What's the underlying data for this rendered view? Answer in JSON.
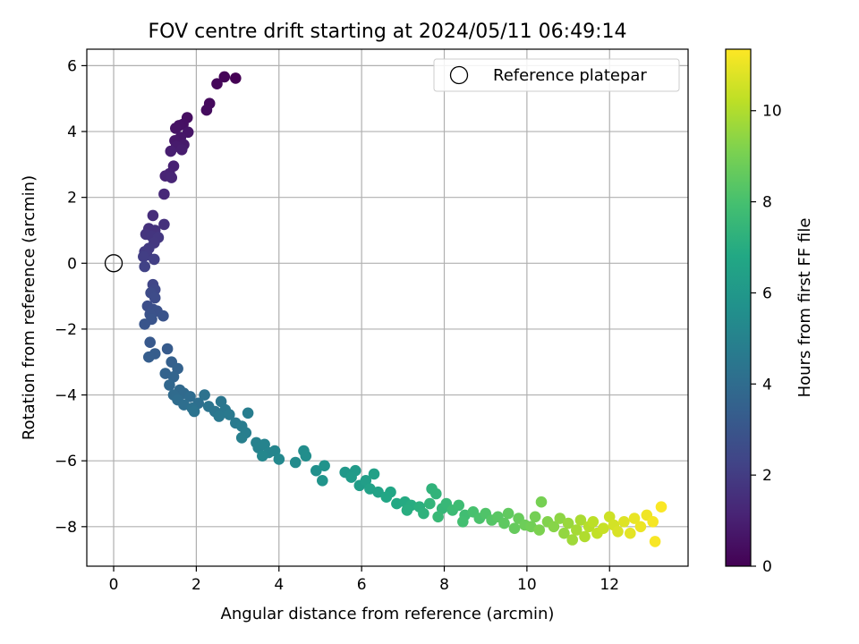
{
  "chart_data": {
    "type": "scatter",
    "title": "FOV centre drift starting at 2024/05/11 06:49:14",
    "xlabel": "Angular distance from reference (arcmin)",
    "ylabel": "Rotation from reference (arcmin)",
    "xlim": [
      -0.65,
      13.9
    ],
    "ylim": [
      -9.2,
      6.5
    ],
    "xticks": [
      0,
      2,
      4,
      6,
      8,
      10,
      12
    ],
    "yticks": [
      -8,
      -6,
      -4,
      -2,
      0,
      2,
      4,
      6
    ],
    "xtick_labels": [
      "0",
      "2",
      "4",
      "6",
      "8",
      "10",
      "12"
    ],
    "ytick_labels": [
      "−8",
      "−6",
      "−4",
      "−2",
      "0",
      "2",
      "4",
      "6"
    ],
    "grid": true,
    "colormap": "viridis",
    "colorbar": {
      "label": "Hours from first FF file",
      "range": [
        0,
        11.35
      ],
      "ticks": [
        0,
        2,
        4,
        6,
        8,
        10
      ],
      "tick_labels": [
        "0",
        "2",
        "4",
        "6",
        "8",
        "10"
      ]
    },
    "legend": {
      "position": "top-right",
      "entries": [
        {
          "label": "Reference platepar",
          "marker": "open-circle",
          "x": 0,
          "y": 0
        }
      ]
    },
    "series": [
      {
        "points": [
          {
            "x": 2.95,
            "y": 5.62,
            "c": 0.0
          },
          {
            "x": 2.68,
            "y": 5.66,
            "c": 0.1
          },
          {
            "x": 2.5,
            "y": 5.45,
            "c": 0.2
          },
          {
            "x": 2.32,
            "y": 4.85,
            "c": 0.3
          },
          {
            "x": 2.25,
            "y": 4.65,
            "c": 0.35
          },
          {
            "x": 1.78,
            "y": 4.42,
            "c": 0.45
          },
          {
            "x": 1.68,
            "y": 4.22,
            "c": 0.5
          },
          {
            "x": 1.58,
            "y": 4.18,
            "c": 0.55
          },
          {
            "x": 1.5,
            "y": 4.1,
            "c": 0.6
          },
          {
            "x": 1.8,
            "y": 3.98,
            "c": 0.65
          },
          {
            "x": 1.62,
            "y": 3.82,
            "c": 0.7
          },
          {
            "x": 1.48,
            "y": 3.72,
            "c": 0.75
          },
          {
            "x": 1.7,
            "y": 3.6,
            "c": 0.8
          },
          {
            "x": 1.52,
            "y": 3.55,
            "c": 0.85
          },
          {
            "x": 1.65,
            "y": 3.45,
            "c": 0.9
          },
          {
            "x": 1.38,
            "y": 3.4,
            "c": 0.95
          },
          {
            "x": 1.45,
            "y": 2.95,
            "c": 1.05
          },
          {
            "x": 1.35,
            "y": 2.72,
            "c": 1.1
          },
          {
            "x": 1.25,
            "y": 2.65,
            "c": 1.15
          },
          {
            "x": 1.4,
            "y": 2.6,
            "c": 1.2
          },
          {
            "x": 1.22,
            "y": 2.1,
            "c": 1.3
          },
          {
            "x": 0.95,
            "y": 1.45,
            "c": 1.45
          },
          {
            "x": 1.22,
            "y": 1.18,
            "c": 1.55
          },
          {
            "x": 0.85,
            "y": 1.05,
            "c": 1.6
          },
          {
            "x": 1.0,
            "y": 1.0,
            "c": 1.65
          },
          {
            "x": 0.78,
            "y": 0.88,
            "c": 1.7
          },
          {
            "x": 0.92,
            "y": 0.82,
            "c": 1.75
          },
          {
            "x": 1.08,
            "y": 0.78,
            "c": 1.8
          },
          {
            "x": 0.98,
            "y": 0.62,
            "c": 1.85
          },
          {
            "x": 0.85,
            "y": 0.45,
            "c": 1.9
          },
          {
            "x": 0.75,
            "y": 0.35,
            "c": 1.95
          },
          {
            "x": 0.8,
            "y": 0.25,
            "c": 2.0
          },
          {
            "x": 0.72,
            "y": 0.2,
            "c": 2.05
          },
          {
            "x": 0.98,
            "y": 0.12,
            "c": 2.1
          },
          {
            "x": 0.75,
            "y": -0.1,
            "c": 2.2
          },
          {
            "x": 0.95,
            "y": -0.65,
            "c": 2.35
          },
          {
            "x": 1.0,
            "y": -0.8,
            "c": 2.45
          },
          {
            "x": 0.9,
            "y": -0.9,
            "c": 2.55
          },
          {
            "x": 1.0,
            "y": -1.05,
            "c": 2.6
          },
          {
            "x": 0.82,
            "y": -1.3,
            "c": 2.7
          },
          {
            "x": 0.95,
            "y": -1.4,
            "c": 2.75
          },
          {
            "x": 1.05,
            "y": -1.45,
            "c": 2.8
          },
          {
            "x": 0.88,
            "y": -1.55,
            "c": 2.85
          },
          {
            "x": 1.2,
            "y": -1.6,
            "c": 2.9
          },
          {
            "x": 0.92,
            "y": -1.7,
            "c": 2.95
          },
          {
            "x": 0.75,
            "y": -1.85,
            "c": 3.0
          },
          {
            "x": 0.88,
            "y": -2.4,
            "c": 3.15
          },
          {
            "x": 1.3,
            "y": -2.6,
            "c": 3.25
          },
          {
            "x": 1.0,
            "y": -2.75,
            "c": 3.3
          },
          {
            "x": 0.85,
            "y": -2.85,
            "c": 3.35
          },
          {
            "x": 1.4,
            "y": -3.0,
            "c": 3.45
          },
          {
            "x": 1.55,
            "y": -3.2,
            "c": 3.55
          },
          {
            "x": 1.25,
            "y": -3.35,
            "c": 3.6
          },
          {
            "x": 1.45,
            "y": -3.45,
            "c": 3.65
          },
          {
            "x": 1.35,
            "y": -3.7,
            "c": 3.75
          },
          {
            "x": 1.6,
            "y": -3.85,
            "c": 3.85
          },
          {
            "x": 1.7,
            "y": -3.95,
            "c": 3.9
          },
          {
            "x": 1.45,
            "y": -4.0,
            "c": 3.95
          },
          {
            "x": 1.85,
            "y": -4.05,
            "c": 4.0
          },
          {
            "x": 1.55,
            "y": -4.15,
            "c": 4.05
          },
          {
            "x": 1.7,
            "y": -4.3,
            "c": 4.1
          },
          {
            "x": 2.05,
            "y": -4.25,
            "c": 4.15
          },
          {
            "x": 1.9,
            "y": -4.4,
            "c": 4.2
          },
          {
            "x": 2.2,
            "y": -4.0,
            "c": 4.25
          },
          {
            "x": 1.95,
            "y": -4.5,
            "c": 4.3
          },
          {
            "x": 2.3,
            "y": -4.35,
            "c": 4.35
          },
          {
            "x": 2.45,
            "y": -4.5,
            "c": 4.4
          },
          {
            "x": 2.6,
            "y": -4.2,
            "c": 4.45
          },
          {
            "x": 2.7,
            "y": -4.45,
            "c": 4.5
          },
          {
            "x": 2.55,
            "y": -4.65,
            "c": 4.55
          },
          {
            "x": 2.8,
            "y": -4.6,
            "c": 4.6
          },
          {
            "x": 2.95,
            "y": -4.85,
            "c": 4.65
          },
          {
            "x": 3.1,
            "y": -4.95,
            "c": 4.7
          },
          {
            "x": 3.25,
            "y": -4.55,
            "c": 4.75
          },
          {
            "x": 3.2,
            "y": -5.15,
            "c": 4.8
          },
          {
            "x": 3.1,
            "y": -5.3,
            "c": 4.85
          },
          {
            "x": 3.45,
            "y": -5.45,
            "c": 4.95
          },
          {
            "x": 3.5,
            "y": -5.6,
            "c": 5.0
          },
          {
            "x": 3.65,
            "y": -5.5,
            "c": 5.05
          },
          {
            "x": 3.75,
            "y": -5.75,
            "c": 5.1
          },
          {
            "x": 3.9,
            "y": -5.7,
            "c": 5.15
          },
          {
            "x": 3.6,
            "y": -5.85,
            "c": 5.2
          },
          {
            "x": 4.0,
            "y": -5.95,
            "c": 5.25
          },
          {
            "x": 4.4,
            "y": -6.05,
            "c": 5.4
          },
          {
            "x": 4.6,
            "y": -5.7,
            "c": 5.5
          },
          {
            "x": 4.65,
            "y": -5.85,
            "c": 5.55
          },
          {
            "x": 4.9,
            "y": -6.3,
            "c": 5.65
          },
          {
            "x": 5.1,
            "y": -6.15,
            "c": 5.75
          },
          {
            "x": 5.05,
            "y": -6.6,
            "c": 5.8
          },
          {
            "x": 5.6,
            "y": -6.35,
            "c": 6.0
          },
          {
            "x": 5.85,
            "y": -6.3,
            "c": 6.1
          },
          {
            "x": 5.75,
            "y": -6.5,
            "c": 6.15
          },
          {
            "x": 5.95,
            "y": -6.75,
            "c": 6.2
          },
          {
            "x": 6.1,
            "y": -6.6,
            "c": 6.3
          },
          {
            "x": 6.3,
            "y": -6.4,
            "c": 6.4
          },
          {
            "x": 6.2,
            "y": -6.85,
            "c": 6.45
          },
          {
            "x": 6.4,
            "y": -6.95,
            "c": 6.5
          },
          {
            "x": 6.7,
            "y": -6.95,
            "c": 6.65
          },
          {
            "x": 6.6,
            "y": -7.1,
            "c": 6.7
          },
          {
            "x": 6.85,
            "y": -7.3,
            "c": 6.8
          },
          {
            "x": 7.05,
            "y": -7.25,
            "c": 6.9
          },
          {
            "x": 7.2,
            "y": -7.35,
            "c": 7.0
          },
          {
            "x": 7.1,
            "y": -7.5,
            "c": 7.05
          },
          {
            "x": 7.4,
            "y": -7.4,
            "c": 7.15
          },
          {
            "x": 7.5,
            "y": -7.6,
            "c": 7.25
          },
          {
            "x": 7.7,
            "y": -6.85,
            "c": 7.3
          },
          {
            "x": 7.8,
            "y": -7.0,
            "c": 7.35
          },
          {
            "x": 7.65,
            "y": -7.3,
            "c": 7.4
          },
          {
            "x": 7.95,
            "y": -7.45,
            "c": 7.5
          },
          {
            "x": 8.05,
            "y": -7.3,
            "c": 7.55
          },
          {
            "x": 7.85,
            "y": -7.7,
            "c": 7.6
          },
          {
            "x": 8.2,
            "y": -7.5,
            "c": 7.7
          },
          {
            "x": 8.35,
            "y": -7.35,
            "c": 7.75
          },
          {
            "x": 8.5,
            "y": -7.65,
            "c": 7.85
          },
          {
            "x": 8.45,
            "y": -7.85,
            "c": 7.9
          },
          {
            "x": 8.7,
            "y": -7.55,
            "c": 8.0
          },
          {
            "x": 8.85,
            "y": -7.75,
            "c": 8.1
          },
          {
            "x": 9.0,
            "y": -7.6,
            "c": 8.2
          },
          {
            "x": 9.15,
            "y": -7.8,
            "c": 8.3
          },
          {
            "x": 9.3,
            "y": -7.7,
            "c": 8.4
          },
          {
            "x": 9.45,
            "y": -7.9,
            "c": 8.5
          },
          {
            "x": 9.55,
            "y": -7.6,
            "c": 8.55
          },
          {
            "x": 9.7,
            "y": -8.05,
            "c": 8.65
          },
          {
            "x": 9.8,
            "y": -7.75,
            "c": 8.7
          },
          {
            "x": 9.95,
            "y": -7.95,
            "c": 8.8
          },
          {
            "x": 10.1,
            "y": -8.0,
            "c": 8.9
          },
          {
            "x": 10.2,
            "y": -7.7,
            "c": 8.95
          },
          {
            "x": 10.35,
            "y": -7.25,
            "c": 9.0
          },
          {
            "x": 10.3,
            "y": -8.1,
            "c": 9.1
          },
          {
            "x": 10.5,
            "y": -7.85,
            "c": 9.2
          },
          {
            "x": 10.65,
            "y": -8.0,
            "c": 9.3
          },
          {
            "x": 10.8,
            "y": -7.75,
            "c": 9.4
          },
          {
            "x": 10.9,
            "y": -8.2,
            "c": 9.5
          },
          {
            "x": 11.0,
            "y": -7.9,
            "c": 9.6
          },
          {
            "x": 11.1,
            "y": -8.4,
            "c": 9.7
          },
          {
            "x": 11.2,
            "y": -8.1,
            "c": 9.8
          },
          {
            "x": 11.3,
            "y": -7.8,
            "c": 9.9
          },
          {
            "x": 11.4,
            "y": -8.3,
            "c": 10.0
          },
          {
            "x": 11.5,
            "y": -8.0,
            "c": 10.1
          },
          {
            "x": 11.6,
            "y": -7.85,
            "c": 10.2
          },
          {
            "x": 11.7,
            "y": -8.2,
            "c": 10.3
          },
          {
            "x": 11.85,
            "y": -8.05,
            "c": 10.4
          },
          {
            "x": 12.0,
            "y": -7.7,
            "c": 10.5
          },
          {
            "x": 12.1,
            "y": -7.95,
            "c": 10.6
          },
          {
            "x": 12.2,
            "y": -8.15,
            "c": 10.7
          },
          {
            "x": 12.35,
            "y": -7.85,
            "c": 10.8
          },
          {
            "x": 12.5,
            "y": -8.2,
            "c": 10.9
          },
          {
            "x": 12.6,
            "y": -7.75,
            "c": 11.0
          },
          {
            "x": 12.75,
            "y": -8.0,
            "c": 11.05
          },
          {
            "x": 12.9,
            "y": -7.65,
            "c": 11.1
          },
          {
            "x": 13.05,
            "y": -7.85,
            "c": 11.2
          },
          {
            "x": 13.1,
            "y": -8.45,
            "c": 11.25
          },
          {
            "x": 13.25,
            "y": -7.4,
            "c": 11.3
          }
        ]
      }
    ]
  }
}
